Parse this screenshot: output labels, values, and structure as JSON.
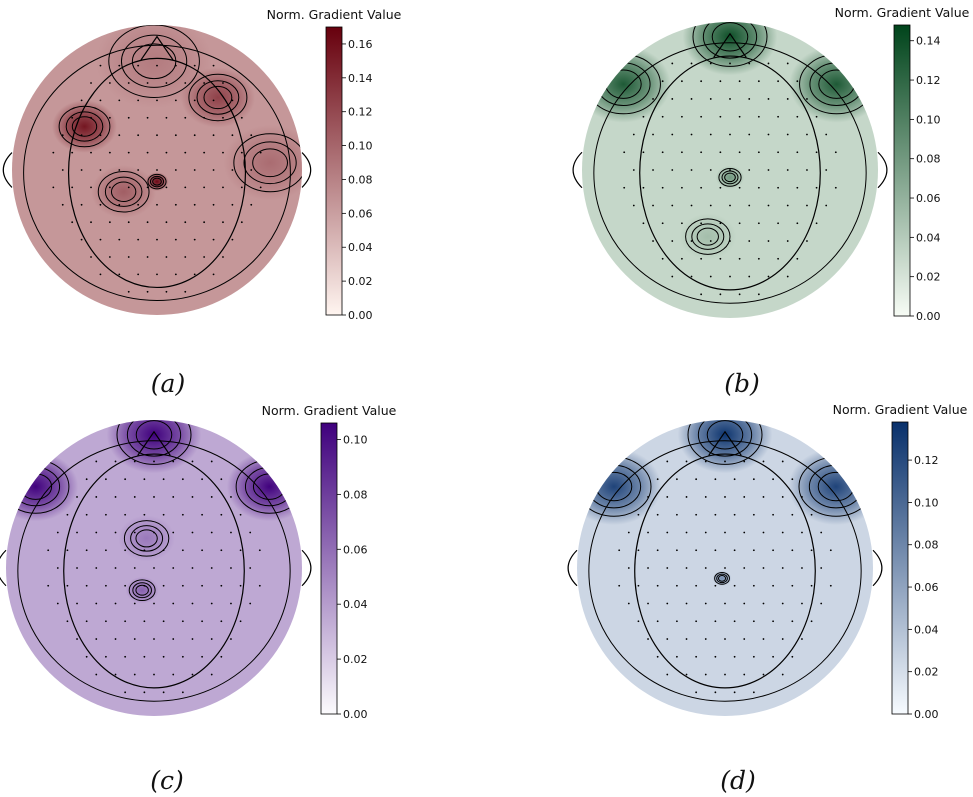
{
  "chart_data": [
    {
      "type": "heatmap",
      "caption": "(a)",
      "colorbar_title": "Norm. Gradient Value",
      "colormap": "Reds",
      "color_low": "#fff5f0",
      "color_high": "#67000d",
      "range": [
        0.0,
        0.17
      ],
      "ticks": [
        "0.00",
        "0.02",
        "0.04",
        "0.06",
        "0.08",
        "0.10",
        "0.12",
        "0.14",
        "0.16"
      ],
      "tick_values": [
        0.0,
        0.02,
        0.04,
        0.06,
        0.08,
        0.1,
        0.12,
        0.14,
        0.16
      ],
      "base_value": 0.065
    },
    {
      "type": "heatmap",
      "caption": "(b)",
      "colorbar_title": "Norm. Gradient Value",
      "colormap": "Greens",
      "color_low": "#f7fcf5",
      "color_high": "#00441b",
      "range": [
        0.0,
        0.148
      ],
      "ticks": [
        "0.00",
        "0.02",
        "0.04",
        "0.06",
        "0.08",
        "0.10",
        "0.12",
        "0.14"
      ],
      "tick_values": [
        0.0,
        0.02,
        0.04,
        0.06,
        0.08,
        0.1,
        0.12,
        0.14
      ],
      "base_value": 0.03
    },
    {
      "type": "heatmap",
      "caption": "(c)",
      "colorbar_title": "Norm. Gradient Value",
      "colormap": "Purples",
      "color_low": "#fcfbfd",
      "color_high": "#3f007d",
      "range": [
        0.0,
        0.106
      ],
      "ticks": [
        "0.00",
        "0.02",
        "0.04",
        "0.06",
        "0.08",
        "0.10"
      ],
      "tick_values": [
        0.0,
        0.02,
        0.04,
        0.06,
        0.08,
        0.1
      ],
      "base_value": 0.035
    },
    {
      "type": "heatmap",
      "caption": "(d)",
      "colorbar_title": "Norm. Gradient Value",
      "colormap": "Blues",
      "color_low": "#f7fbff",
      "color_high": "#08306b",
      "range": [
        0.0,
        0.138
      ],
      "ticks": [
        "0.00",
        "0.02",
        "0.04",
        "0.06",
        "0.08",
        "0.10",
        "0.12"
      ],
      "tick_values": [
        0.0,
        0.02,
        0.04,
        0.06,
        0.08,
        0.1,
        0.12
      ],
      "base_value": 0.025
    }
  ]
}
